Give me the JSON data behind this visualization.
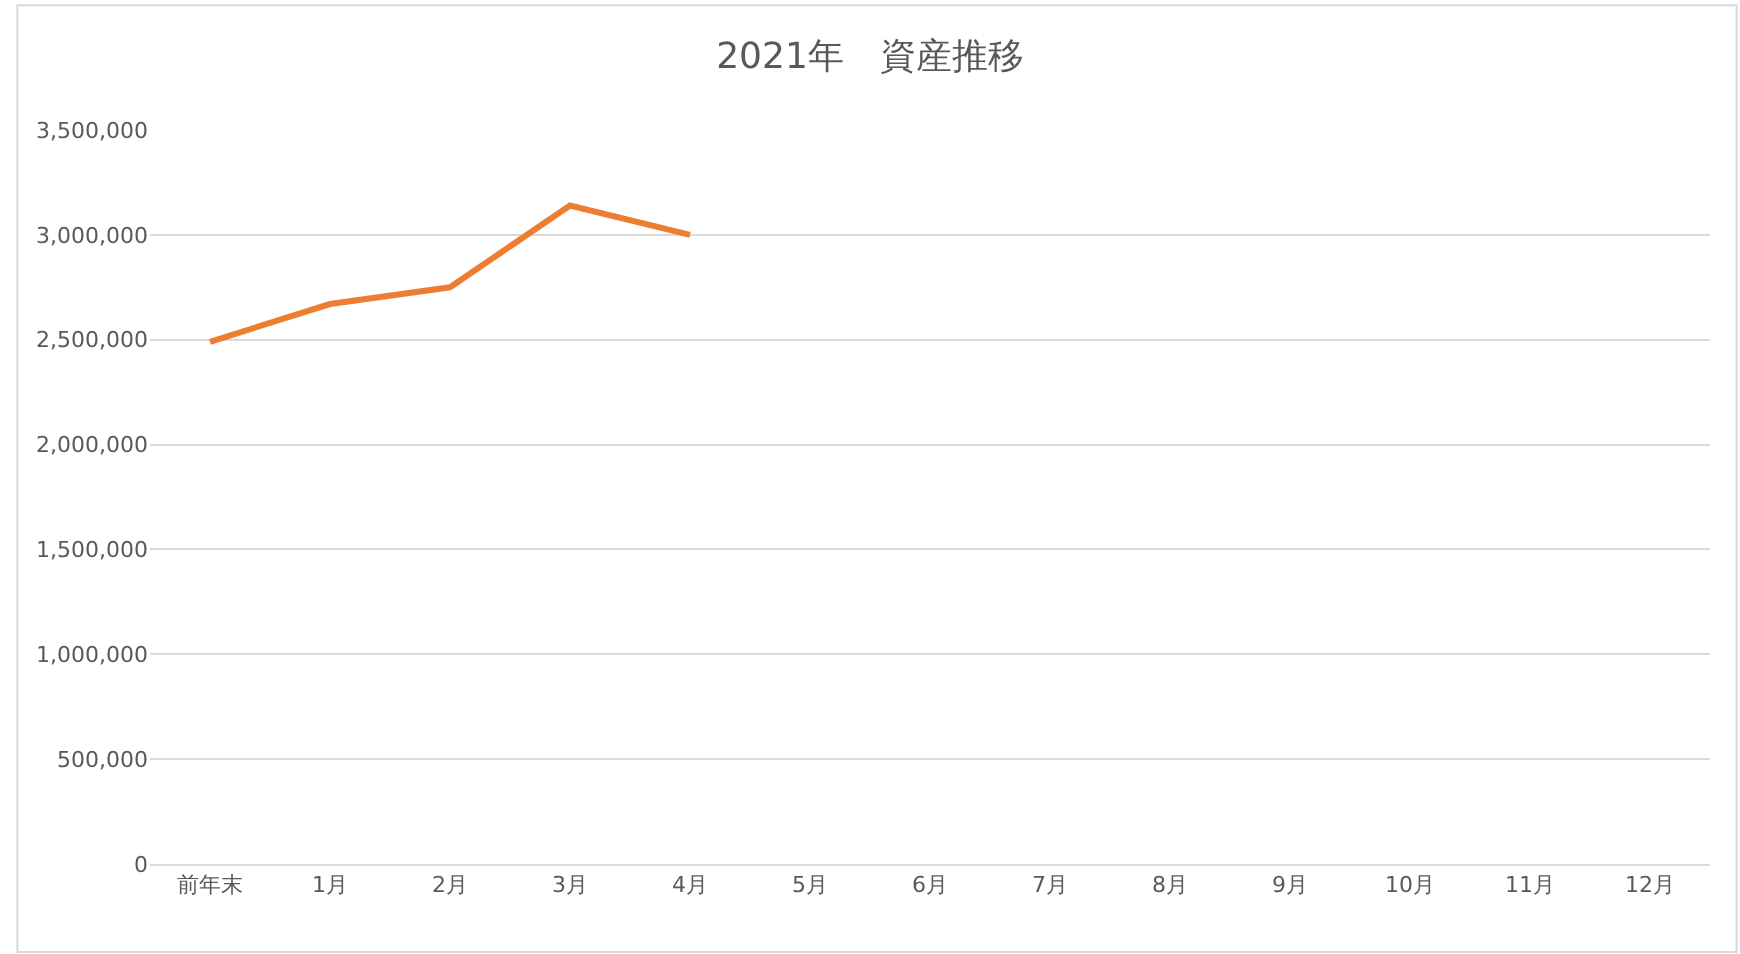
{
  "chart_data": {
    "type": "line",
    "title": "2021年　資産推移",
    "categories": [
      "前年末",
      "1月",
      "2月",
      "3月",
      "4月",
      "5月",
      "6月",
      "7月",
      "8月",
      "9月",
      "10月",
      "11月",
      "12月"
    ],
    "series": [
      {
        "color": "#ed7d31",
        "values": [
          2490000,
          2670000,
          2750000,
          3140000,
          3000000,
          null,
          null,
          null,
          null,
          null,
          null,
          null,
          null
        ]
      }
    ],
    "ylim": [
      0,
      3500000
    ],
    "yticks": [
      {
        "value": 0,
        "label": "0"
      },
      {
        "value": 500000,
        "label": "500,000"
      },
      {
        "value": 1000000,
        "label": "1,000,000"
      },
      {
        "value": 1500000,
        "label": "1,500,000"
      },
      {
        "value": 2000000,
        "label": "2,000,000"
      },
      {
        "value": 2500000,
        "label": "2,500,000"
      },
      {
        "value": 3000000,
        "label": "3,000,000"
      },
      {
        "value": 3500000,
        "label": "3,500,000"
      }
    ],
    "grid": "y",
    "marker": "none",
    "line_style": "solid"
  }
}
